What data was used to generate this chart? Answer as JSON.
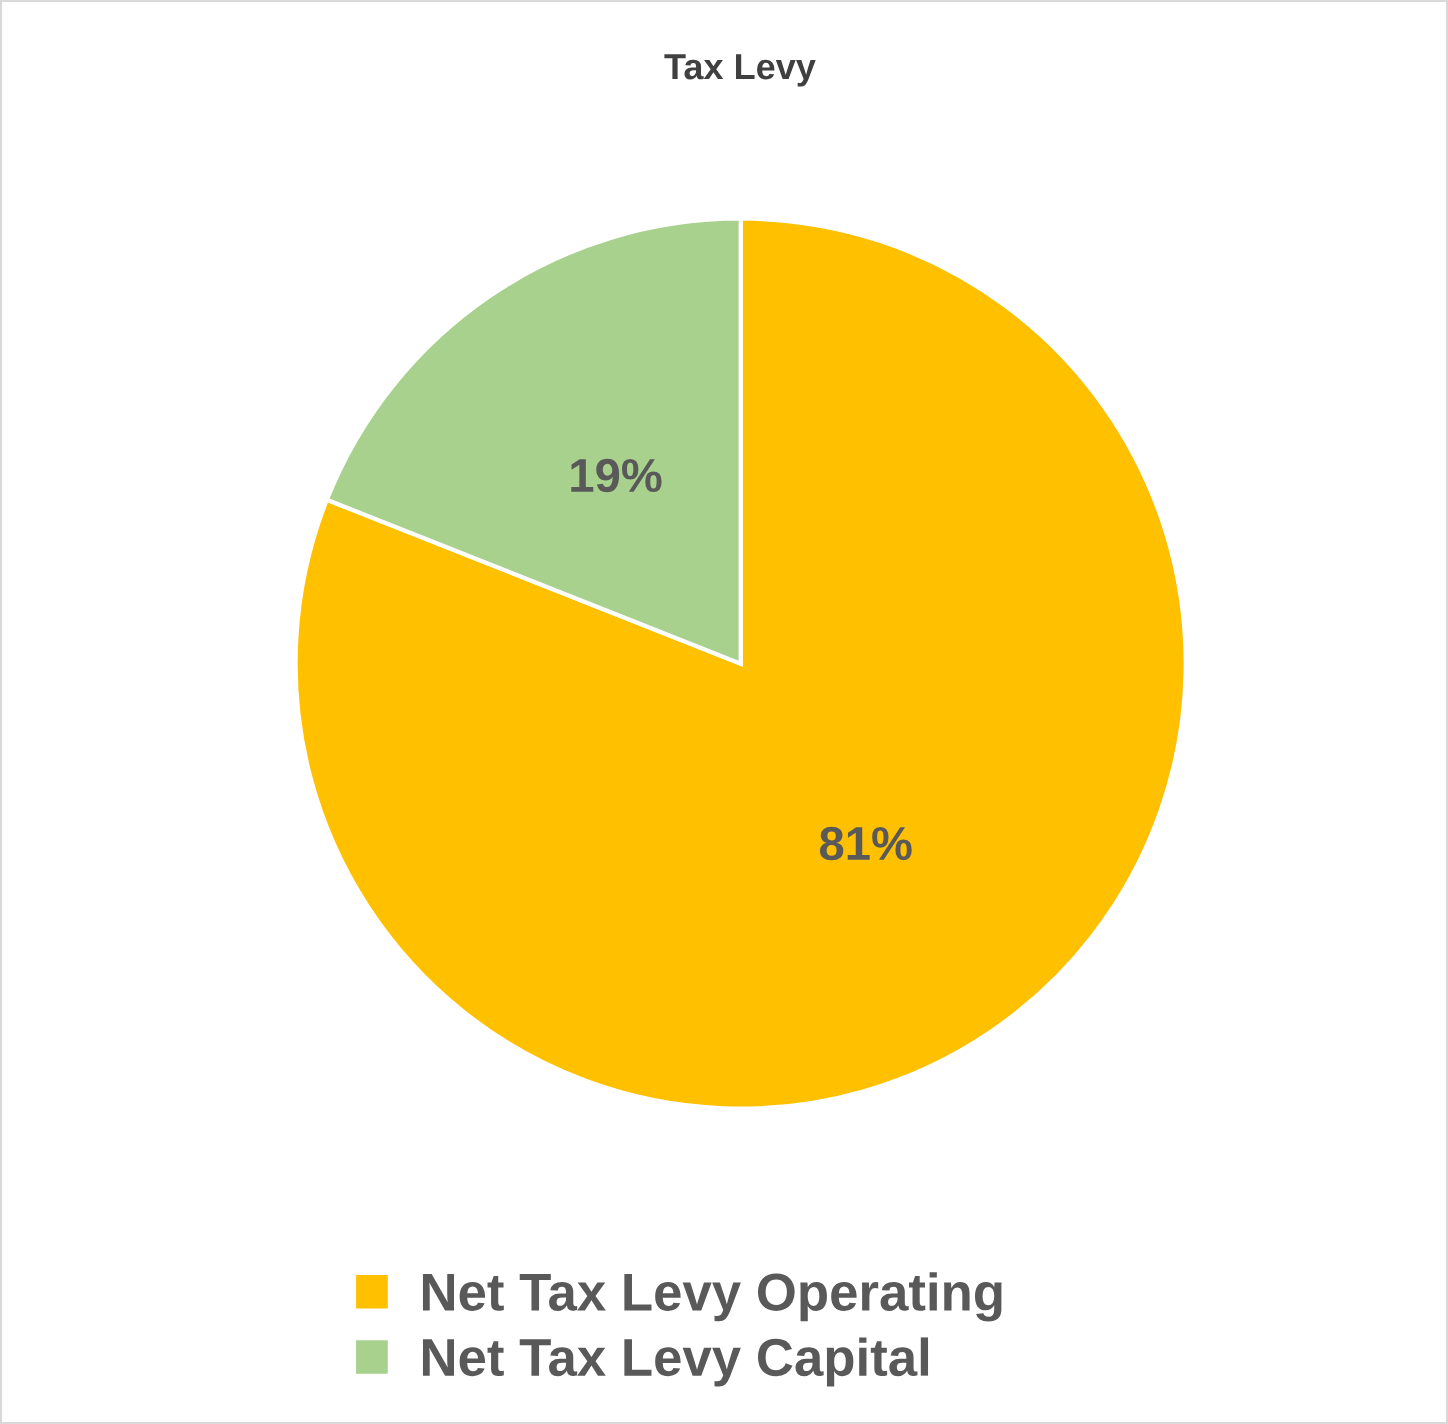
{
  "chart_data": {
    "type": "pie",
    "title": "Tax Levy",
    "categories": [
      "Net Tax Levy Operating",
      "Net Tax Levy Capital"
    ],
    "values": [
      81,
      19
    ],
    "colors": [
      "#ffc000",
      "#a9d18e"
    ],
    "value_labels": [
      "81%",
      "19%"
    ],
    "legend": "bottom"
  }
}
